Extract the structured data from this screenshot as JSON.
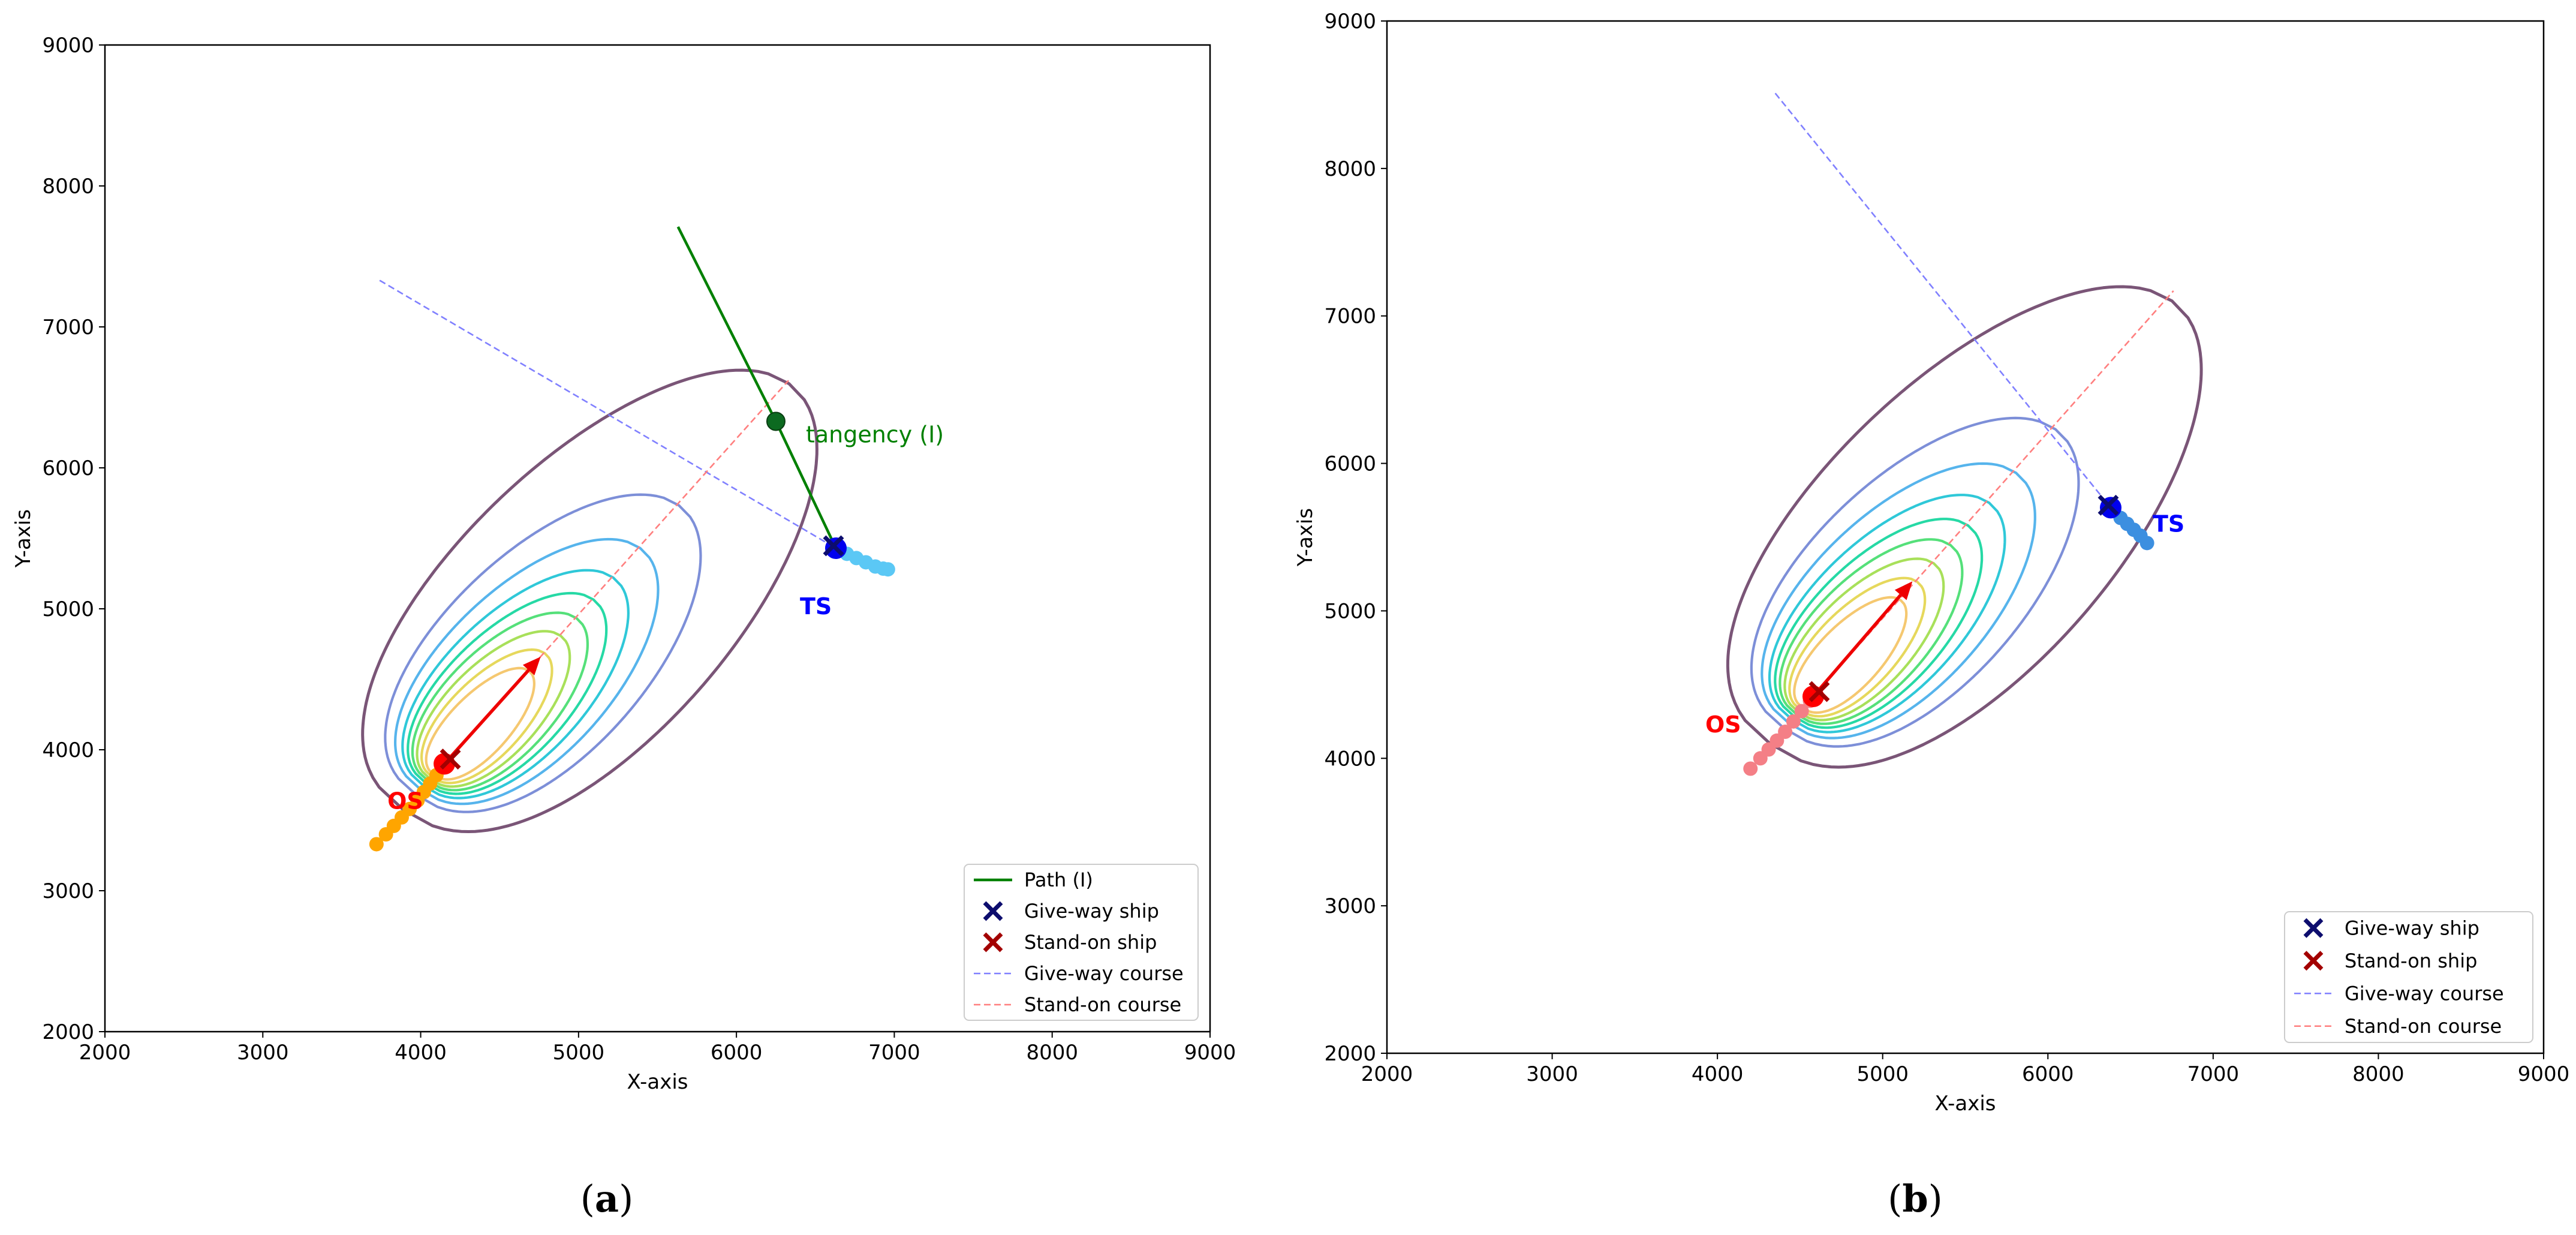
{
  "chart_data": [
    {
      "panel": "a",
      "caption_letter": "a",
      "type": "contour",
      "xlabel": "X-axis",
      "ylabel": "Y-axis",
      "xlim": [
        2000,
        9000
      ],
      "ylim": [
        2000,
        9000
      ],
      "xticks": [
        2000,
        3000,
        4000,
        5000,
        6000,
        7000,
        8000,
        9000
      ],
      "yticks": [
        2000,
        3000,
        4000,
        5000,
        6000,
        7000,
        8000,
        9000
      ],
      "legend_location": "lower-right",
      "legend": [
        {
          "label": "Path (I)",
          "kind": "line",
          "color": "#008000",
          "dash": "solid"
        },
        {
          "label": "Give-way ship",
          "kind": "x",
          "color": "#0d0d6e"
        },
        {
          "label": "Stand-on ship",
          "kind": "x",
          "color": "#a30000"
        },
        {
          "label": "Give-way course",
          "kind": "line",
          "color": "#8080ff",
          "dash": "dashed"
        },
        {
          "label": "Stand-on course",
          "kind": "line",
          "color": "#ff7f7f",
          "dash": "dashed"
        }
      ],
      "stand_on_ship": {
        "label": "OS",
        "label_color": "#ff0000",
        "marker": [
          4150,
          3900
        ],
        "trail_color": "#ffa500",
        "trail": [
          [
            3720,
            3330
          ],
          [
            3780,
            3400
          ],
          [
            3830,
            3460
          ],
          [
            3880,
            3520
          ],
          [
            3930,
            3580
          ],
          [
            3980,
            3640
          ],
          [
            4020,
            3700
          ],
          [
            4060,
            3760
          ],
          [
            4100,
            3820
          ],
          [
            4140,
            3880
          ]
        ]
      },
      "give_way_ship": {
        "label": "TS",
        "label_color": "#0000ff",
        "marker": [
          6630,
          5430
        ],
        "trail_color": "#5bc8f5",
        "trail": [
          [
            6640,
            5420
          ],
          [
            6700,
            5390
          ],
          [
            6760,
            5360
          ],
          [
            6820,
            5330
          ],
          [
            6880,
            5300
          ],
          [
            6930,
            5285
          ],
          [
            6960,
            5280
          ]
        ]
      },
      "stand_on_heading_arrow": {
        "from": [
          4150,
          3900
        ],
        "to": [
          4760,
          4660
        ],
        "color": "#ee0000"
      },
      "give_way_course": {
        "from": [
          3740,
          7330
        ],
        "to": [
          6630,
          5430
        ],
        "color": "#8080ff"
      },
      "stand_on_course": {
        "from": [
          4150,
          3900
        ],
        "to": [
          6330,
          6620
        ],
        "color": "#ff7f7f"
      },
      "path": {
        "name": "Path (I)",
        "points": [
          [
            5630,
            7710
          ],
          [
            6250,
            6330
          ],
          [
            6630,
            5430
          ]
        ],
        "color": "#008000"
      },
      "tangency_point": {
        "label": "tangency (I)",
        "xy": [
          6250,
          6330
        ],
        "color": "#0c6a20"
      },
      "domain_contours": {
        "apex": [
          4150,
          3900
        ],
        "axis_direction_deg": 51,
        "levels": [
          {
            "forward": 3470,
            "side": 1200,
            "color": "#7a5577"
          },
          {
            "forward": 2360,
            "side": 880,
            "color": "#7d8fd8"
          },
          {
            "forward": 1970,
            "side": 730,
            "color": "#56b4ec"
          },
          {
            "forward": 1700,
            "side": 620,
            "color": "#2fc8d8"
          },
          {
            "forward": 1500,
            "side": 540,
            "color": "#26d9a5"
          },
          {
            "forward": 1330,
            "side": 470,
            "color": "#55e07a"
          },
          {
            "forward": 1170,
            "side": 400,
            "color": "#a8e05a"
          },
          {
            "forward": 1010,
            "side": 330,
            "color": "#e6d85c"
          },
          {
            "forward": 850,
            "side": 260,
            "color": "#f5c870"
          }
        ]
      }
    },
    {
      "panel": "b",
      "caption_letter": "b",
      "type": "contour",
      "xlabel": "X-axis",
      "ylabel": "Y-axis",
      "xlim": [
        2000,
        9000
      ],
      "ylim": [
        2000,
        9000
      ],
      "xticks": [
        2000,
        3000,
        4000,
        5000,
        6000,
        7000,
        8000,
        9000
      ],
      "yticks": [
        2000,
        3000,
        4000,
        5000,
        6000,
        7000,
        8000,
        9000
      ],
      "legend_location": "lower-right",
      "legend": [
        {
          "label": "Give-way ship",
          "kind": "x",
          "color": "#0d0d6e"
        },
        {
          "label": "Stand-on ship",
          "kind": "x",
          "color": "#a30000"
        },
        {
          "label": "Give-way course",
          "kind": "line",
          "color": "#8080ff",
          "dash": "dashed"
        },
        {
          "label": "Stand-on course",
          "kind": "line",
          "color": "#ff7f7f",
          "dash": "dashed"
        }
      ],
      "stand_on_ship": {
        "label": "OS",
        "label_color": "#ff0000",
        "marker": [
          4580,
          4420
        ],
        "trail_color": "#f47f86",
        "trail": [
          [
            4200,
            3930
          ],
          [
            4260,
            4000
          ],
          [
            4310,
            4060
          ],
          [
            4360,
            4120
          ],
          [
            4410,
            4180
          ],
          [
            4460,
            4250
          ],
          [
            4510,
            4320
          ],
          [
            4560,
            4390
          ]
        ]
      },
      "give_way_ship": {
        "label": "TS",
        "label_color": "#0000ff",
        "marker": [
          6380,
          5700
        ],
        "trail_color": "#3c8fe0",
        "trail": [
          [
            6400,
            5680
          ],
          [
            6440,
            5630
          ],
          [
            6480,
            5590
          ],
          [
            6520,
            5550
          ],
          [
            6560,
            5510
          ],
          [
            6600,
            5460
          ]
        ]
      },
      "stand_on_heading_arrow": {
        "from": [
          4580,
          4420
        ],
        "to": [
          5180,
          5200
        ],
        "color": "#ee0000"
      },
      "give_way_course": {
        "from": [
          4350,
          8510
        ],
        "to": [
          6380,
          5700
        ],
        "color": "#8080ff"
      },
      "stand_on_course": {
        "from": [
          4580,
          4420
        ],
        "to": [
          6760,
          7170
        ],
        "color": "#ff7f7f"
      },
      "domain_contours": {
        "apex": [
          4580,
          4420
        ],
        "axis_direction_deg": 51,
        "levels": [
          {
            "forward": 3450,
            "side": 1200,
            "color": "#7a5577"
          },
          {
            "forward": 2330,
            "side": 880,
            "color": "#7d8fd8"
          },
          {
            "forward": 1950,
            "side": 730,
            "color": "#56b4ec"
          },
          {
            "forward": 1690,
            "side": 620,
            "color": "#2fc8d8"
          },
          {
            "forward": 1490,
            "side": 540,
            "color": "#26d9a5"
          },
          {
            "forward": 1320,
            "side": 470,
            "color": "#55e07a"
          },
          {
            "forward": 1160,
            "side": 400,
            "color": "#a8e05a"
          },
          {
            "forward": 1000,
            "side": 330,
            "color": "#e6d85c"
          },
          {
            "forward": 840,
            "side": 260,
            "color": "#f5c870"
          }
        ]
      }
    }
  ]
}
